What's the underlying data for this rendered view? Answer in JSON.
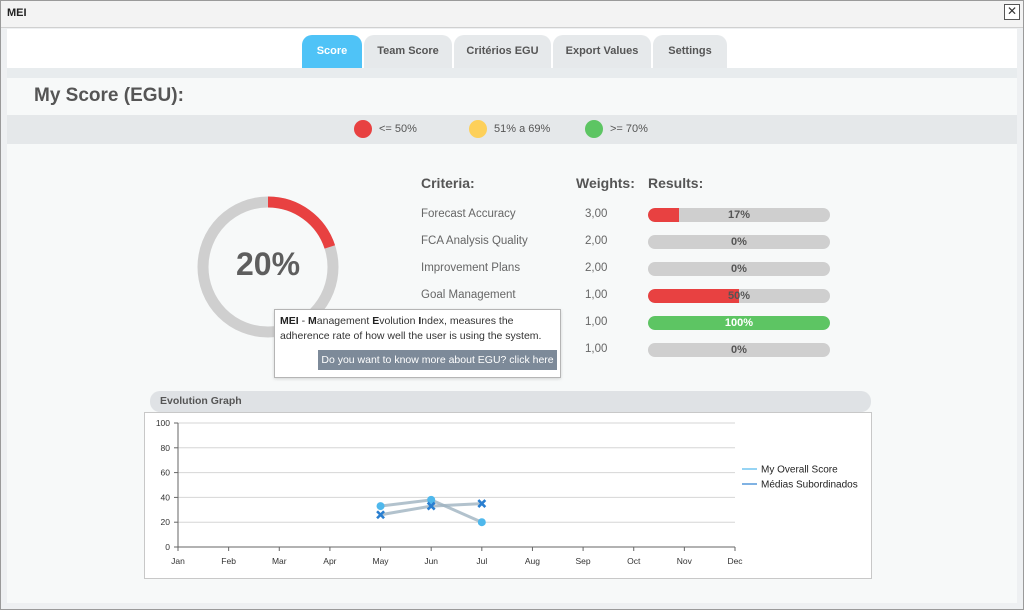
{
  "window": {
    "title": "MEI",
    "close_icon": "close-icon"
  },
  "tabs": [
    {
      "label": "Score",
      "active": true
    },
    {
      "label": "Team Score",
      "active": false
    },
    {
      "label": "Critérios EGU",
      "active": false
    },
    {
      "label": "Export Values",
      "active": false
    },
    {
      "label": "Settings",
      "active": false
    }
  ],
  "page_title": "My Score (EGU):",
  "legend": [
    {
      "label": "<= 50%",
      "color": "#e84141"
    },
    {
      "label": "51% a 69%",
      "color": "#fdd05a"
    },
    {
      "label": ">= 70%",
      "color": "#5dc563"
    }
  ],
  "score": {
    "value": 20,
    "label": "20%",
    "arc_color": "#e84141",
    "track_color": "#cfcfcf"
  },
  "criteria_table": {
    "headers": {
      "criteria": "Criteria:",
      "weights": "Weights:",
      "results": "Results:"
    },
    "rows": [
      {
        "criteria": "Forecast Accuracy",
        "weight": "3,00",
        "result_label": "17%",
        "result": 17,
        "color": "#e84141"
      },
      {
        "criteria": "FCA Analysis Quality",
        "weight": "2,00",
        "result_label": "0%",
        "result": 0,
        "color": "#e84141"
      },
      {
        "criteria": "Improvement Plans",
        "weight": "2,00",
        "result_label": "0%",
        "result": 0,
        "color": "#e84141"
      },
      {
        "criteria": "Goal Management",
        "weight": "1,00",
        "result_label": "50%",
        "result": 50,
        "color": "#e84141"
      },
      {
        "criteria": "",
        "weight": "1,00",
        "result_label": "100%",
        "result": 100,
        "color": "#5dc563"
      },
      {
        "criteria": "",
        "weight": "1,00",
        "result_label": "0%",
        "result": 0,
        "color": "#e84141"
      }
    ]
  },
  "tooltip": {
    "line1_b1": "MEI",
    "line1_t1": " - ",
    "line1_b2": "M",
    "line1_t2": "anagement ",
    "line1_b3": "E",
    "line1_t3": "volution ",
    "line1_b4": "I",
    "line1_t4": "ndex, measures the",
    "line2": "adherence rate of how well the user is using the system.",
    "button": "Do you want to know more about EGU? click here"
  },
  "evolution_graph": {
    "title": "Evolution Graph"
  },
  "chart_data": {
    "type": "line",
    "title": "Evolution Graph",
    "x": [
      "Jan",
      "Feb",
      "Mar",
      "Apr",
      "May",
      "Jun",
      "Jul",
      "Aug",
      "Sep",
      "Oct",
      "Nov",
      "Dec"
    ],
    "ylim": [
      0,
      100
    ],
    "yticks": [
      0,
      20,
      40,
      60,
      80,
      100
    ],
    "grid": true,
    "legend_position": "right",
    "series": [
      {
        "name": "My Overall Score",
        "values": [
          null,
          null,
          null,
          null,
          33,
          38,
          20,
          null,
          null,
          null,
          null,
          null
        ],
        "color": "#4fb8ec",
        "marker": "circle"
      },
      {
        "name": "Médias Subordinados",
        "values": [
          null,
          null,
          null,
          null,
          26,
          33,
          35,
          null,
          null,
          null,
          null,
          null
        ],
        "color": "#2a7fd0",
        "marker": "x"
      }
    ]
  }
}
